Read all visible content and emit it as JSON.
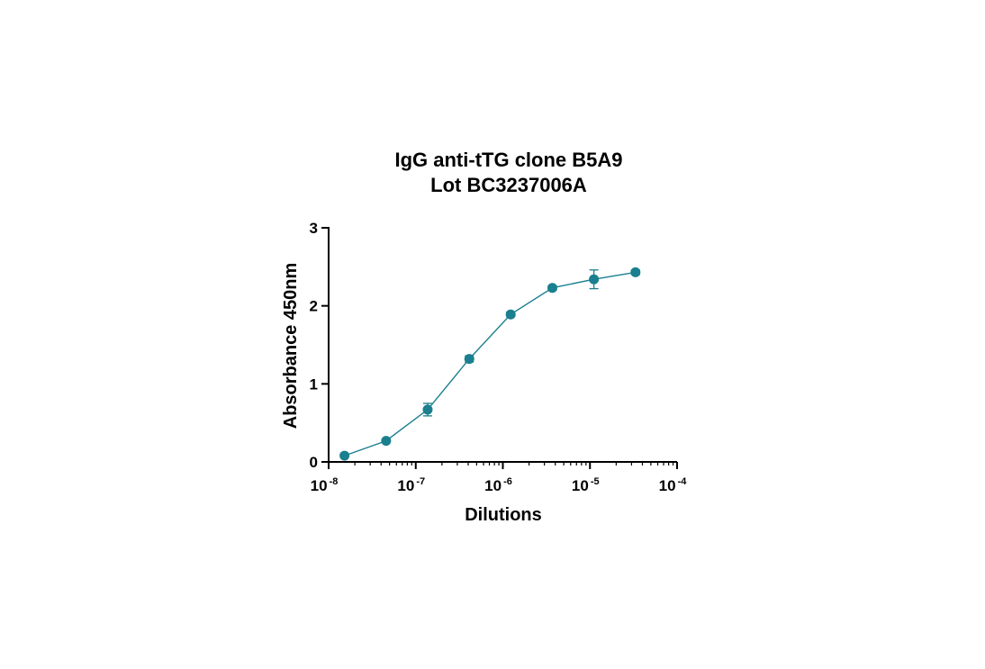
{
  "chart_data": {
    "type": "line",
    "title": [
      "IgG anti-tTG clone B5A9",
      "Lot BC3237006A"
    ],
    "xlabel": "Dilutions",
    "ylabel": "Absorbance 450nm",
    "xscale": "log",
    "xlim": [
      1e-08,
      0.0001
    ],
    "ylim": [
      0,
      3
    ],
    "xticks": [
      {
        "base": "10",
        "exp": "-8"
      },
      {
        "base": "10",
        "exp": "-7"
      },
      {
        "base": "10",
        "exp": "-6"
      },
      {
        "base": "10",
        "exp": "-5"
      },
      {
        "base": "10",
        "exp": "-4"
      }
    ],
    "yticks": [
      {
        "value": 0,
        "label": "0"
      },
      {
        "value": 1,
        "label": "1"
      },
      {
        "value": 2,
        "label": "2"
      },
      {
        "value": 3,
        "label": "3"
      }
    ],
    "grid": false,
    "color": "#1a7f8e",
    "series": [
      {
        "x": [
          1.52e-08,
          4.57e-08,
          1.37e-07,
          4.12e-07,
          1.23e-06,
          3.7e-06,
          1.11e-05,
          3.33e-05
        ],
        "y": [
          0.08,
          0.27,
          0.67,
          1.32,
          1.89,
          2.23,
          2.34,
          2.43
        ],
        "err": [
          0.01,
          0.02,
          0.08,
          0.04,
          0.03,
          0.03,
          0.12,
          0.03
        ]
      }
    ]
  }
}
